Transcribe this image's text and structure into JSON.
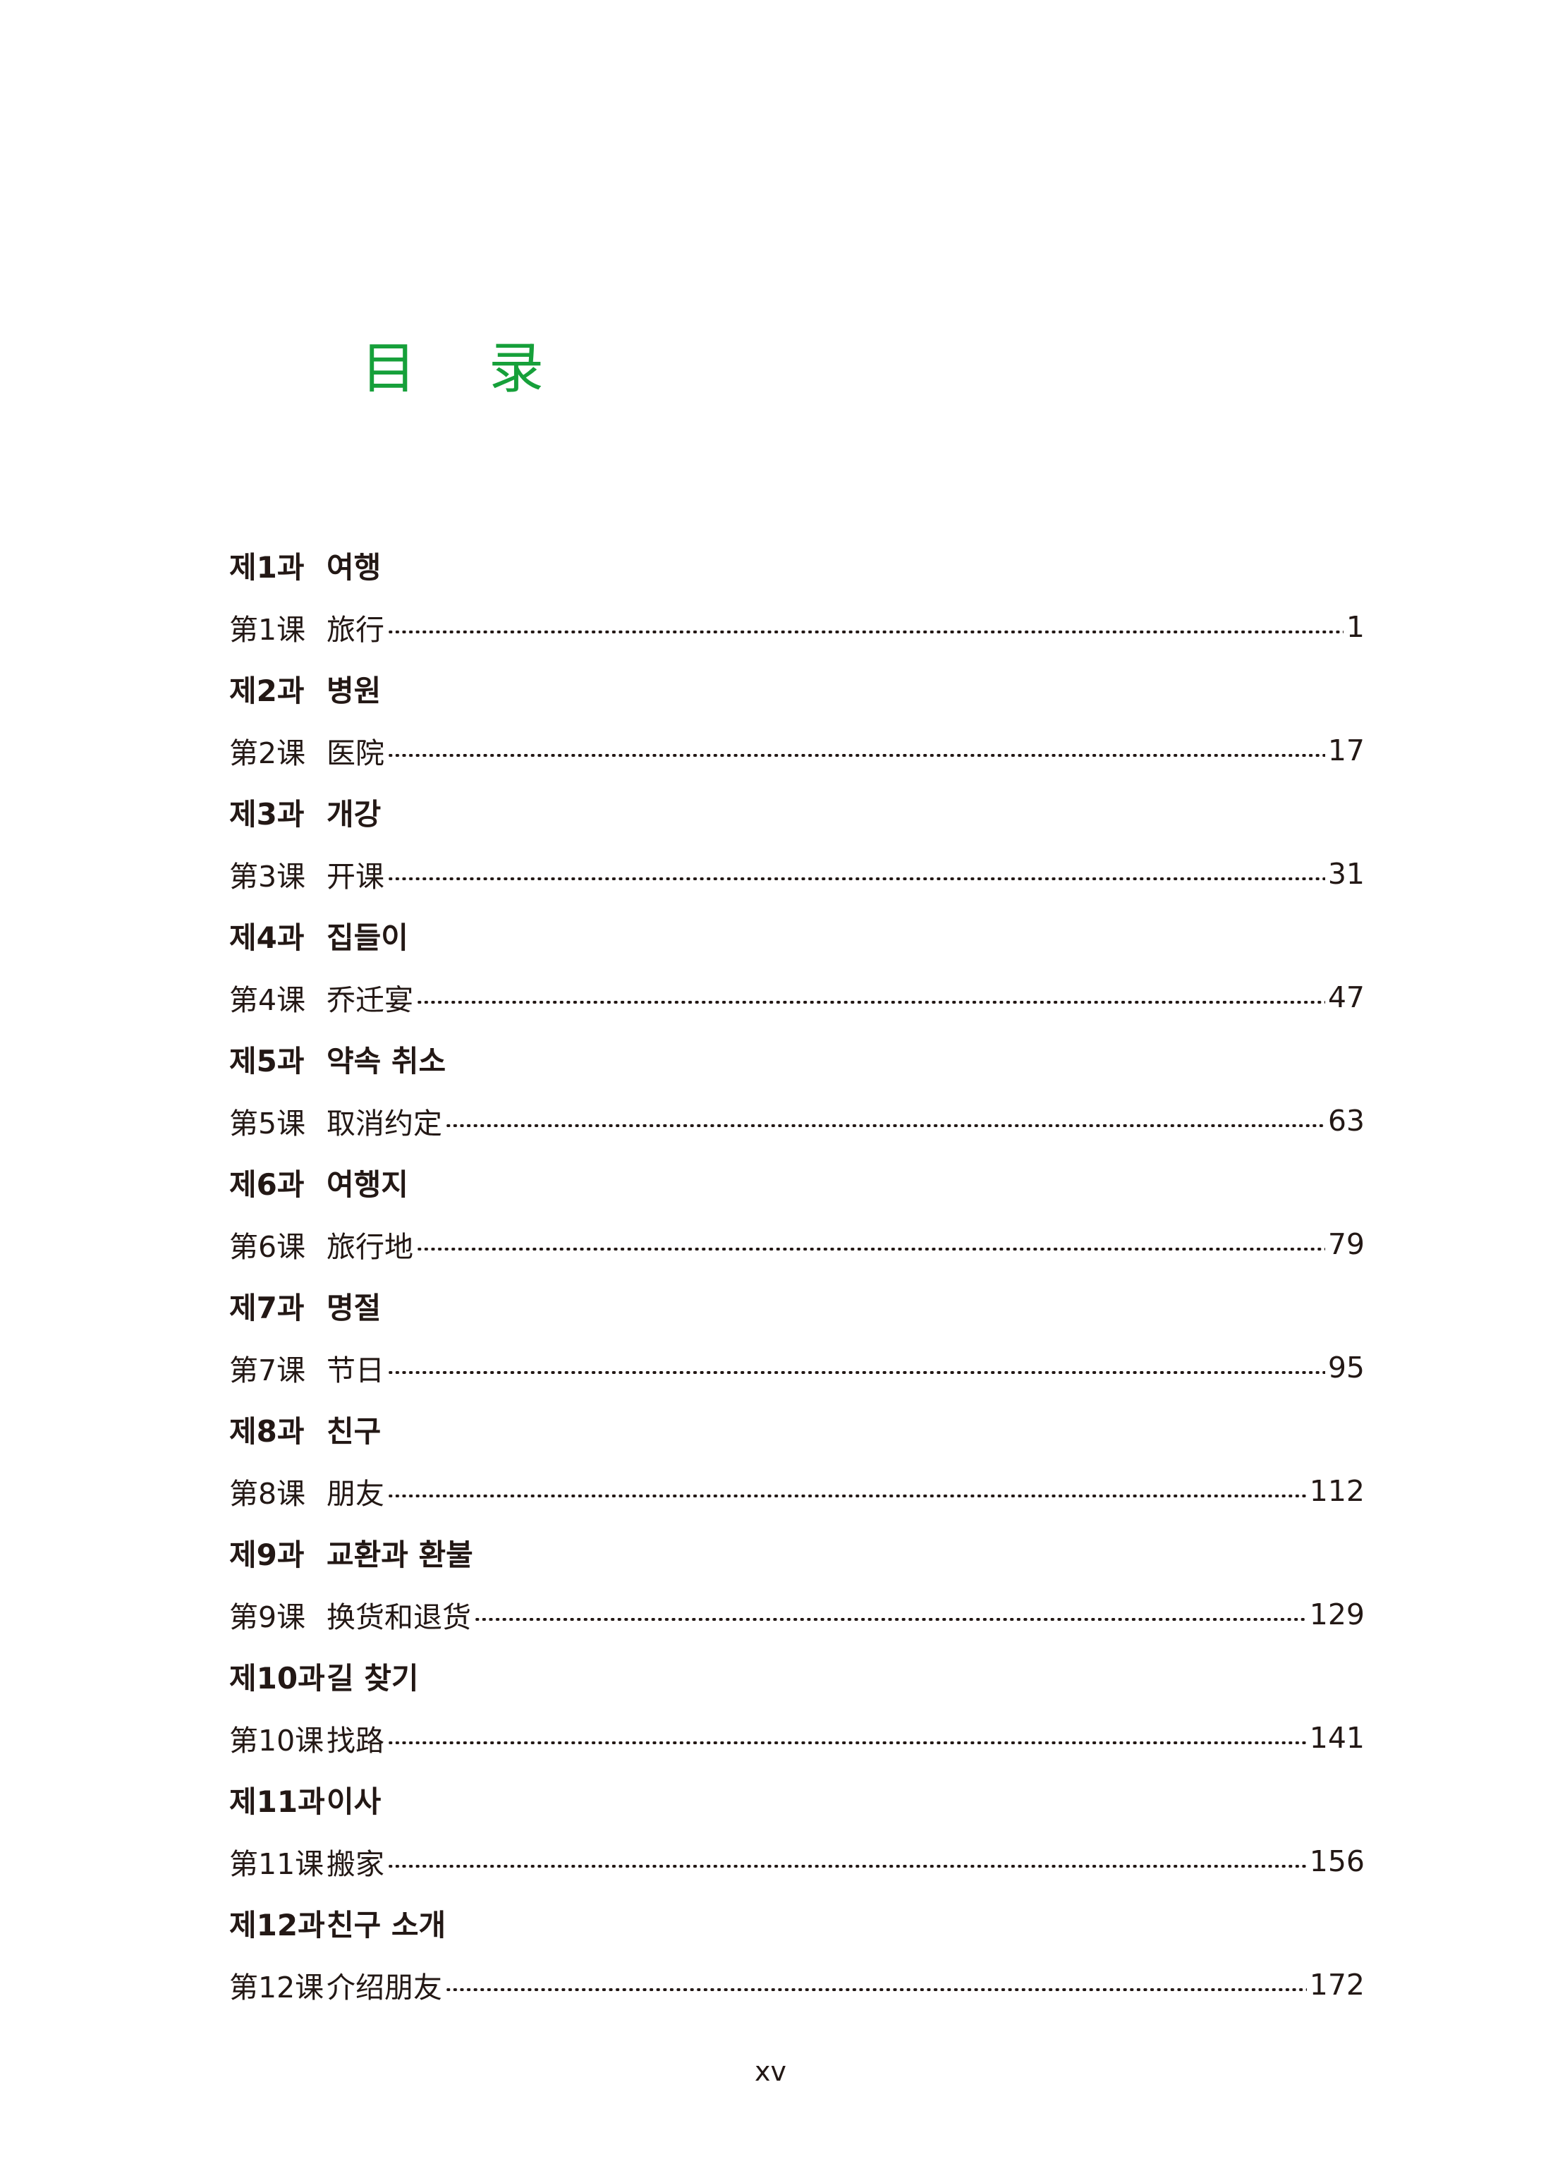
{
  "title": [
    "目",
    "录"
  ],
  "accent_color": "#16a03a",
  "entries": [
    {
      "unit": "제1과",
      "unit_title": "여행",
      "lesson": "第1课",
      "lesson_title": "旅行",
      "page": "1"
    },
    {
      "unit": "제2과",
      "unit_title": "병원",
      "lesson": "第2课",
      "lesson_title": "医院",
      "page": "17"
    },
    {
      "unit": "제3과",
      "unit_title": "개강",
      "lesson": "第3课",
      "lesson_title": "开课",
      "page": "31"
    },
    {
      "unit": "제4과",
      "unit_title": "집들이",
      "lesson": "第4课",
      "lesson_title": "乔迁宴",
      "page": "47"
    },
    {
      "unit": "제5과",
      "unit_title": "약속 취소",
      "lesson": "第5课",
      "lesson_title": "取消约定",
      "page": "63"
    },
    {
      "unit": "제6과",
      "unit_title": "여행지",
      "lesson": "第6课",
      "lesson_title": "旅行地",
      "page": "79"
    },
    {
      "unit": "제7과",
      "unit_title": "명절",
      "lesson": "第7课",
      "lesson_title": "节日",
      "page": "95"
    },
    {
      "unit": "제8과",
      "unit_title": "친구",
      "lesson": "第8课",
      "lesson_title": "朋友",
      "page": "112"
    },
    {
      "unit": "제9과",
      "unit_title": "교환과 환불",
      "lesson": "第9课",
      "lesson_title": "换货和退货",
      "page": "129"
    },
    {
      "unit": "제10과",
      "unit_title": "길 찾기",
      "lesson": "第10课",
      "lesson_title": "找路",
      "page": "141"
    },
    {
      "unit": "제11과",
      "unit_title": "이사",
      "lesson": "第11课",
      "lesson_title": "搬家",
      "page": "156"
    },
    {
      "unit": "제12과",
      "unit_title": "친구 소개",
      "lesson": "第12课",
      "lesson_title": "介绍朋友",
      "page": "172"
    }
  ],
  "footer": {
    "page_number": "xv"
  }
}
